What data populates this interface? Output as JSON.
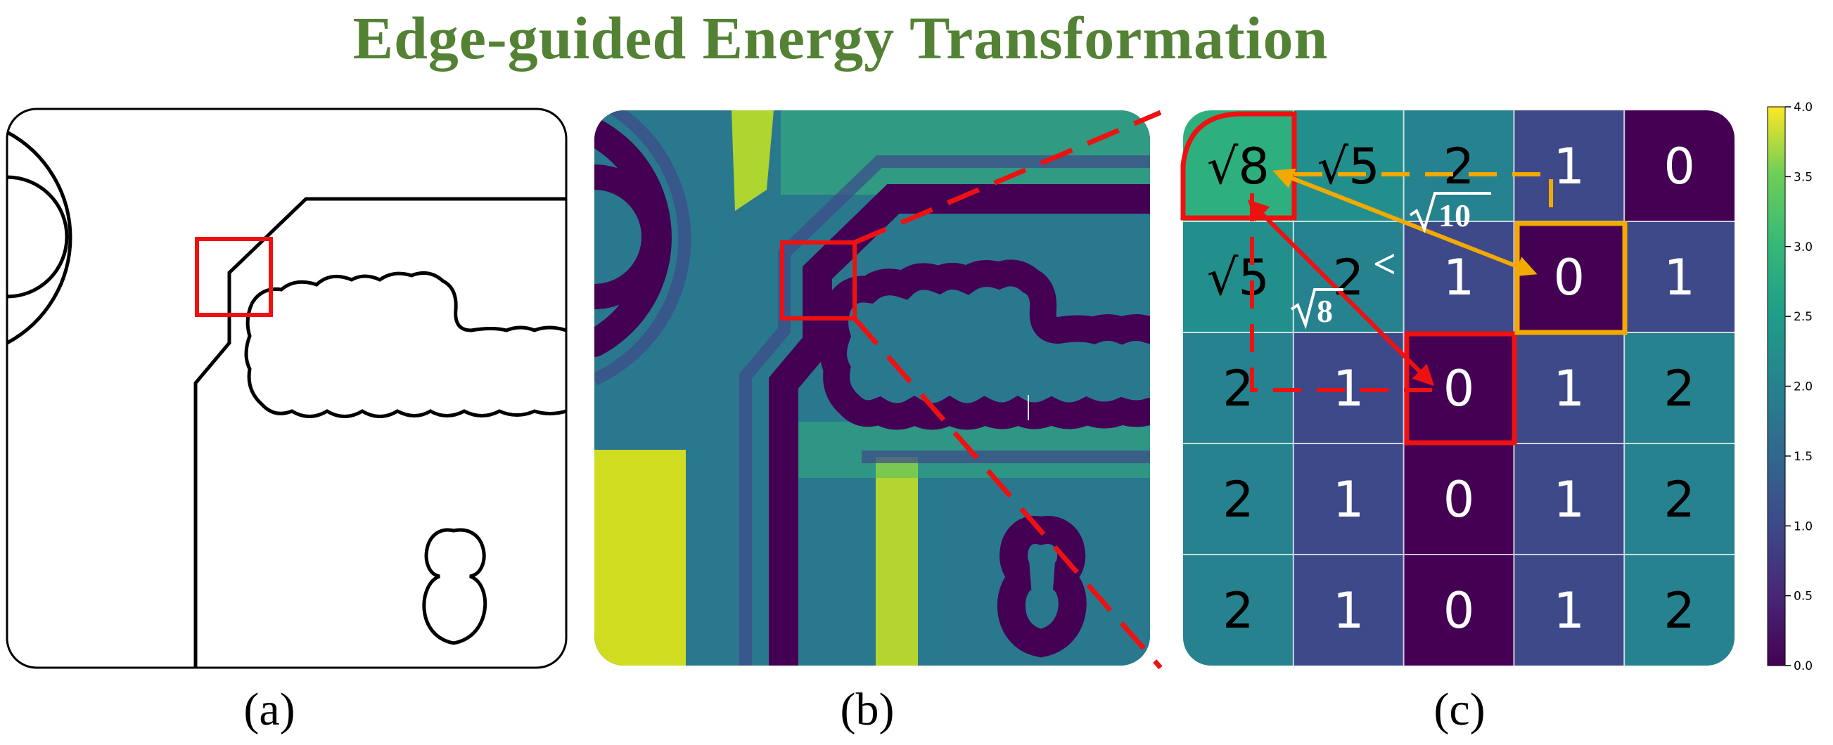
{
  "title": "Edge-guided Energy Transformation",
  "captions": {
    "a": "(a)",
    "b": "(b)",
    "c": "(c)"
  },
  "grid": {
    "cells": [
      [
        "√8",
        "√5",
        "2",
        "1",
        "0"
      ],
      [
        "√5",
        "2",
        "1",
        "0",
        "1"
      ],
      [
        "2",
        "1",
        "0",
        "1",
        "2"
      ],
      [
        "2",
        "1",
        "0",
        "1",
        "2"
      ],
      [
        "2",
        "1",
        "0",
        "1",
        "2"
      ]
    ],
    "values": [
      [
        2.83,
        2.24,
        2,
        1,
        0
      ],
      [
        2.24,
        2,
        1,
        0,
        1
      ],
      [
        2,
        1,
        0,
        1,
        2
      ],
      [
        2,
        1,
        0,
        1,
        2
      ],
      [
        2,
        1,
        0,
        1,
        2
      ]
    ],
    "sqrt_radicands": [
      [
        "8",
        "5",
        "",
        "",
        ""
      ],
      [
        "5",
        "",
        "",
        "",
        ""
      ],
      [
        "",
        "",
        "",
        "",
        ""
      ],
      [
        "",
        "",
        "",
        "",
        ""
      ],
      [
        "",
        "",
        "",
        "",
        ""
      ]
    ],
    "vmin": 0,
    "vmax": 4
  },
  "annotations": {
    "orange_distance": "√10",
    "red_distance": "√8",
    "comparison": "<",
    "orange_radicand": "10",
    "red_radicand": "8"
  },
  "colorbar": {
    "ticks": [
      "4.0",
      "3.5",
      "3.0",
      "2.5",
      "2.0",
      "1.5",
      "1.0",
      "0.5",
      "0.0"
    ],
    "colormap": "viridis"
  },
  "colors": {
    "title": "#548235",
    "highlight_red": "#ee1111",
    "highlight_orange": "#f2a900"
  }
}
